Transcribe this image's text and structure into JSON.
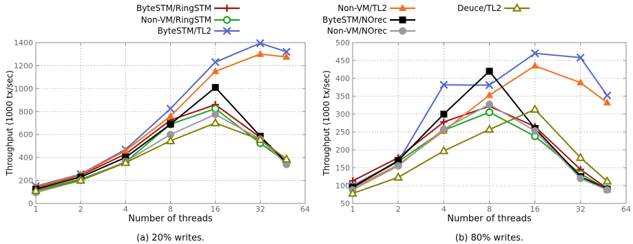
{
  "legend": {
    "entries": [
      {
        "label": "ByteSTM/RingSTM",
        "color": "#a60f0f",
        "marker": "plus"
      },
      {
        "label": "Non-VM/RingSTM",
        "color": "#22a322",
        "marker": "circle-open"
      },
      {
        "label": "ByteSTM/TL2",
        "color": "#5566cc",
        "marker": "x"
      },
      {
        "label": "Non-VM/TL2",
        "color": "#f07020",
        "marker": "triangle"
      },
      {
        "label": "ByteSTM/NOrec",
        "color": "#000000",
        "marker": "square"
      },
      {
        "label": "Non-VM/NOrec",
        "color": "#999999",
        "marker": "circle"
      },
      {
        "label": "Deuce/TL2",
        "color": "#808000",
        "marker": "triangle-open"
      }
    ]
  },
  "chart_data": [
    {
      "type": "line",
      "caption": "(a) 20% writes.",
      "xlabel": "Number of threads",
      "ylabel": "Throughput (1000 tx/sec)",
      "x_scale": "log2",
      "xlim": [
        1,
        64
      ],
      "ylim": [
        0,
        1400
      ],
      "xticks": [
        1,
        2,
        4,
        8,
        16,
        32,
        64
      ],
      "yticks": [
        0,
        200,
        400,
        600,
        800,
        1000,
        1200,
        1400
      ],
      "grid": true,
      "x": [
        1,
        2,
        4,
        8,
        16,
        32,
        48
      ],
      "series": [
        {
          "name": "ByteSTM/RingSTM",
          "values": [
            140,
            245,
            430,
            725,
            860,
            575,
            360
          ]
        },
        {
          "name": "Non-VM/RingSTM",
          "values": [
            115,
            210,
            360,
            690,
            825,
            525,
            360
          ]
        },
        {
          "name": "ByteSTM/TL2",
          "values": [
            150,
            255,
            470,
            825,
            1230,
            1395,
            1320
          ]
        },
        {
          "name": "Non-VM/TL2",
          "values": [
            145,
            250,
            460,
            760,
            1150,
            1300,
            1275
          ]
        },
        {
          "name": "ByteSTM/NOrec",
          "values": [
            125,
            230,
            400,
            690,
            1010,
            585,
            355
          ]
        },
        {
          "name": "Non-VM/NOrec",
          "values": [
            95,
            200,
            365,
            600,
            775,
            560,
            340
          ]
        },
        {
          "name": "Deuce/TL2",
          "values": [
            110,
            200,
            355,
            545,
            700,
            555,
            385
          ]
        }
      ]
    },
    {
      "type": "line",
      "caption": "(b) 80% writes.",
      "xlabel": "Number of threads",
      "ylabel": "Throughput (1000 tx/sec)",
      "x_scale": "log2",
      "xlim": [
        1,
        64
      ],
      "ylim": [
        50,
        500
      ],
      "xticks": [
        1,
        2,
        4,
        8,
        16,
        32,
        64
      ],
      "yticks": [
        50,
        100,
        150,
        200,
        250,
        300,
        350,
        400,
        450,
        500
      ],
      "grid": true,
      "x": [
        1,
        2,
        4,
        8,
        16,
        32,
        48
      ],
      "series": [
        {
          "name": "ByteSTM/RingSTM",
          "values": [
            113,
            178,
            278,
            322,
            265,
            145,
            92
          ]
        },
        {
          "name": "Non-VM/RingSTM",
          "values": [
            97,
            167,
            255,
            305,
            238,
            133,
            90
          ]
        },
        {
          "name": "ByteSTM/TL2",
          "values": [
            100,
            168,
            382,
            381,
            470,
            458,
            352
          ]
        },
        {
          "name": "Non-VM/TL2",
          "values": [
            93,
            158,
            253,
            353,
            435,
            388,
            332
          ]
        },
        {
          "name": "ByteSTM/NOrec",
          "values": [
            95,
            170,
            300,
            420,
            260,
            125,
            90
          ]
        },
        {
          "name": "Non-VM/NOrec",
          "values": [
            88,
            155,
            258,
            327,
            253,
            120,
            88
          ]
        },
        {
          "name": "Deuce/TL2",
          "values": [
            78,
            123,
            197,
            257,
            313,
            178,
            112
          ]
        }
      ]
    }
  ]
}
